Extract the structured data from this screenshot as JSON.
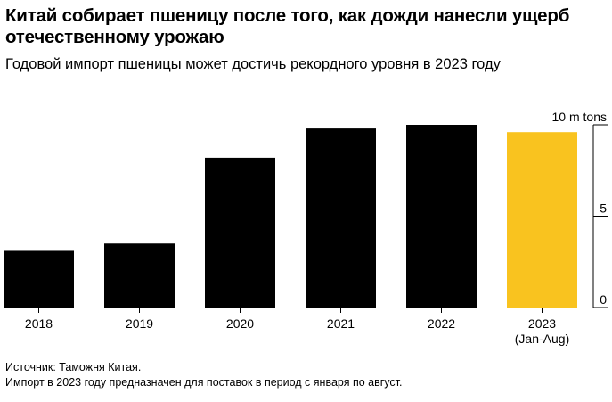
{
  "chart_data": {
    "type": "bar",
    "title": "Китай собирает пшеницу после того, как дожди нанесли ущерб отечественному урожаю",
    "subtitle": "Годовой импорт пшеницы может достичь рекордного уровня в 2023 году",
    "categories": [
      "2018",
      "2019",
      "2020",
      "2021",
      "2022",
      "2023\n(Jan-Aug)"
    ],
    "values": [
      3.1,
      3.5,
      8.2,
      9.8,
      10.0,
      9.6
    ],
    "highlight_index": 5,
    "bar_color": "#000000",
    "highlight_color": "#f9c31f",
    "ylim": [
      0,
      10
    ],
    "yticks": [
      {
        "value": 0,
        "label": "0"
      },
      {
        "value": 5,
        "label": "5"
      },
      {
        "value": 10,
        "label": "10 m tons"
      }
    ],
    "xlabel": "",
    "ylabel": ""
  },
  "footer": {
    "source": "Источник: Таможня Китая.",
    "note": "Импорт в 2023 году предназначен для поставок в период с января по август."
  }
}
